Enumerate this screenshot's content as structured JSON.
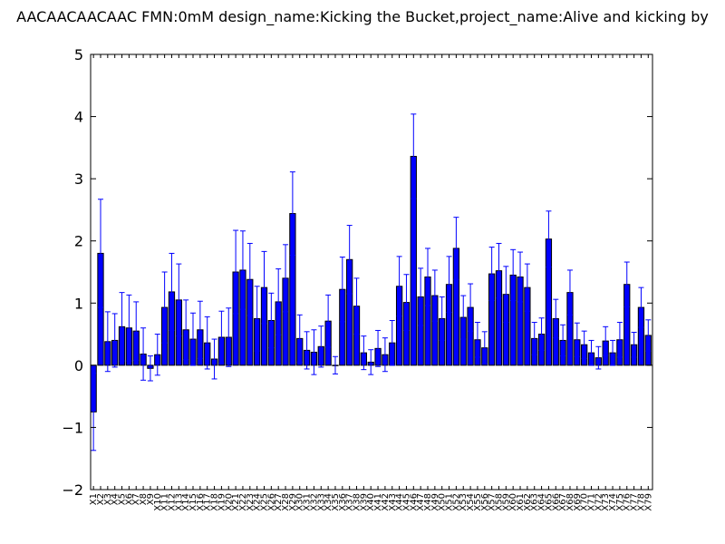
{
  "chart_data": {
    "type": "bar",
    "title": "AACAACAACAAC  FMN:0mM  design_name:Kicking the Bucket,project_name:Alive and kicking by",
    "xlabel": "",
    "ylabel": "",
    "ylim": [
      -2,
      5
    ],
    "yticks": [
      "−2",
      "−1",
      "0",
      "1",
      "2",
      "3",
      "4",
      "5"
    ],
    "grid": false,
    "bar_color": "#0000ff",
    "error_color": "#0000ff",
    "categories": [
      "X1",
      "X2",
      "X3",
      "X4",
      "X5",
      "X6",
      "X7",
      "X8",
      "X9",
      "X10",
      "X11",
      "X12",
      "X13",
      "X14",
      "X15",
      "X16",
      "X17",
      "X18",
      "X19",
      "X20",
      "X21",
      "X22",
      "X23",
      "X24",
      "X25",
      "X26",
      "X27",
      "X28",
      "X29",
      "X30",
      "X31",
      "X32",
      "X33",
      "X34",
      "X35",
      "X36",
      "X37",
      "X38",
      "X39",
      "X40",
      "X41",
      "X42",
      "X43",
      "X44",
      "X45",
      "X46",
      "X47",
      "X48",
      "X49",
      "X50",
      "X51",
      "X52",
      "X53",
      "X54",
      "X55",
      "X56",
      "X57",
      "X58",
      "X59",
      "X60",
      "X61",
      "X62",
      "X63",
      "X64",
      "X65",
      "X66",
      "X67",
      "X68",
      "X69",
      "X70",
      "X71",
      "X72",
      "X73",
      "X74",
      "X75",
      "X76",
      "X77",
      "X78",
      "X79"
    ],
    "values": [
      -0.75,
      1.8,
      0.38,
      0.4,
      0.62,
      0.6,
      0.55,
      0.18,
      -0.05,
      0.17,
      0.93,
      1.18,
      1.05,
      0.57,
      0.42,
      0.57,
      0.36,
      0.1,
      0.45,
      0.45,
      1.5,
      1.53,
      1.38,
      0.75,
      1.25,
      0.72,
      1.02,
      1.4,
      2.44,
      0.43,
      0.24,
      0.21,
      0.3,
      0.71,
      0.0,
      1.22,
      1.7,
      0.95,
      0.2,
      0.05,
      0.27,
      0.17,
      0.36,
      1.27,
      1.01,
      3.36,
      1.1,
      1.42,
      1.12,
      0.75,
      1.3,
      1.88,
      0.77,
      0.93,
      0.41,
      0.28,
      1.47,
      1.52,
      1.14,
      1.45,
      1.42,
      1.25,
      0.43,
      0.5,
      2.03,
      0.75,
      0.4,
      1.17,
      0.41,
      0.33,
      0.2,
      0.12,
      0.39,
      0.2,
      0.41,
      1.3,
      0.33,
      0.93,
      0.48
    ],
    "errors": [
      0.62,
      0.87,
      0.48,
      0.43,
      0.55,
      0.53,
      0.47,
      0.42,
      0.2,
      0.33,
      0.57,
      0.62,
      0.58,
      0.48,
      0.42,
      0.46,
      0.42,
      0.32,
      0.42,
      0.47,
      0.67,
      0.63,
      0.58,
      0.52,
      0.58,
      0.44,
      0.53,
      0.54,
      0.67,
      0.38,
      0.3,
      0.36,
      0.33,
      0.42,
      0.14,
      0.52,
      0.55,
      0.45,
      0.27,
      0.2,
      0.29,
      0.27,
      0.36,
      0.48,
      0.45,
      0.68,
      0.46,
      0.46,
      0.41,
      0.35,
      0.45,
      0.5,
      0.35,
      0.38,
      0.28,
      0.26,
      0.43,
      0.44,
      0.45,
      0.41,
      0.4,
      0.38,
      0.26,
      0.26,
      0.45,
      0.31,
      0.25,
      0.36,
      0.27,
      0.22,
      0.2,
      0.18,
      0.23,
      0.2,
      0.28,
      0.36,
      0.2,
      0.32,
      0.25
    ]
  }
}
